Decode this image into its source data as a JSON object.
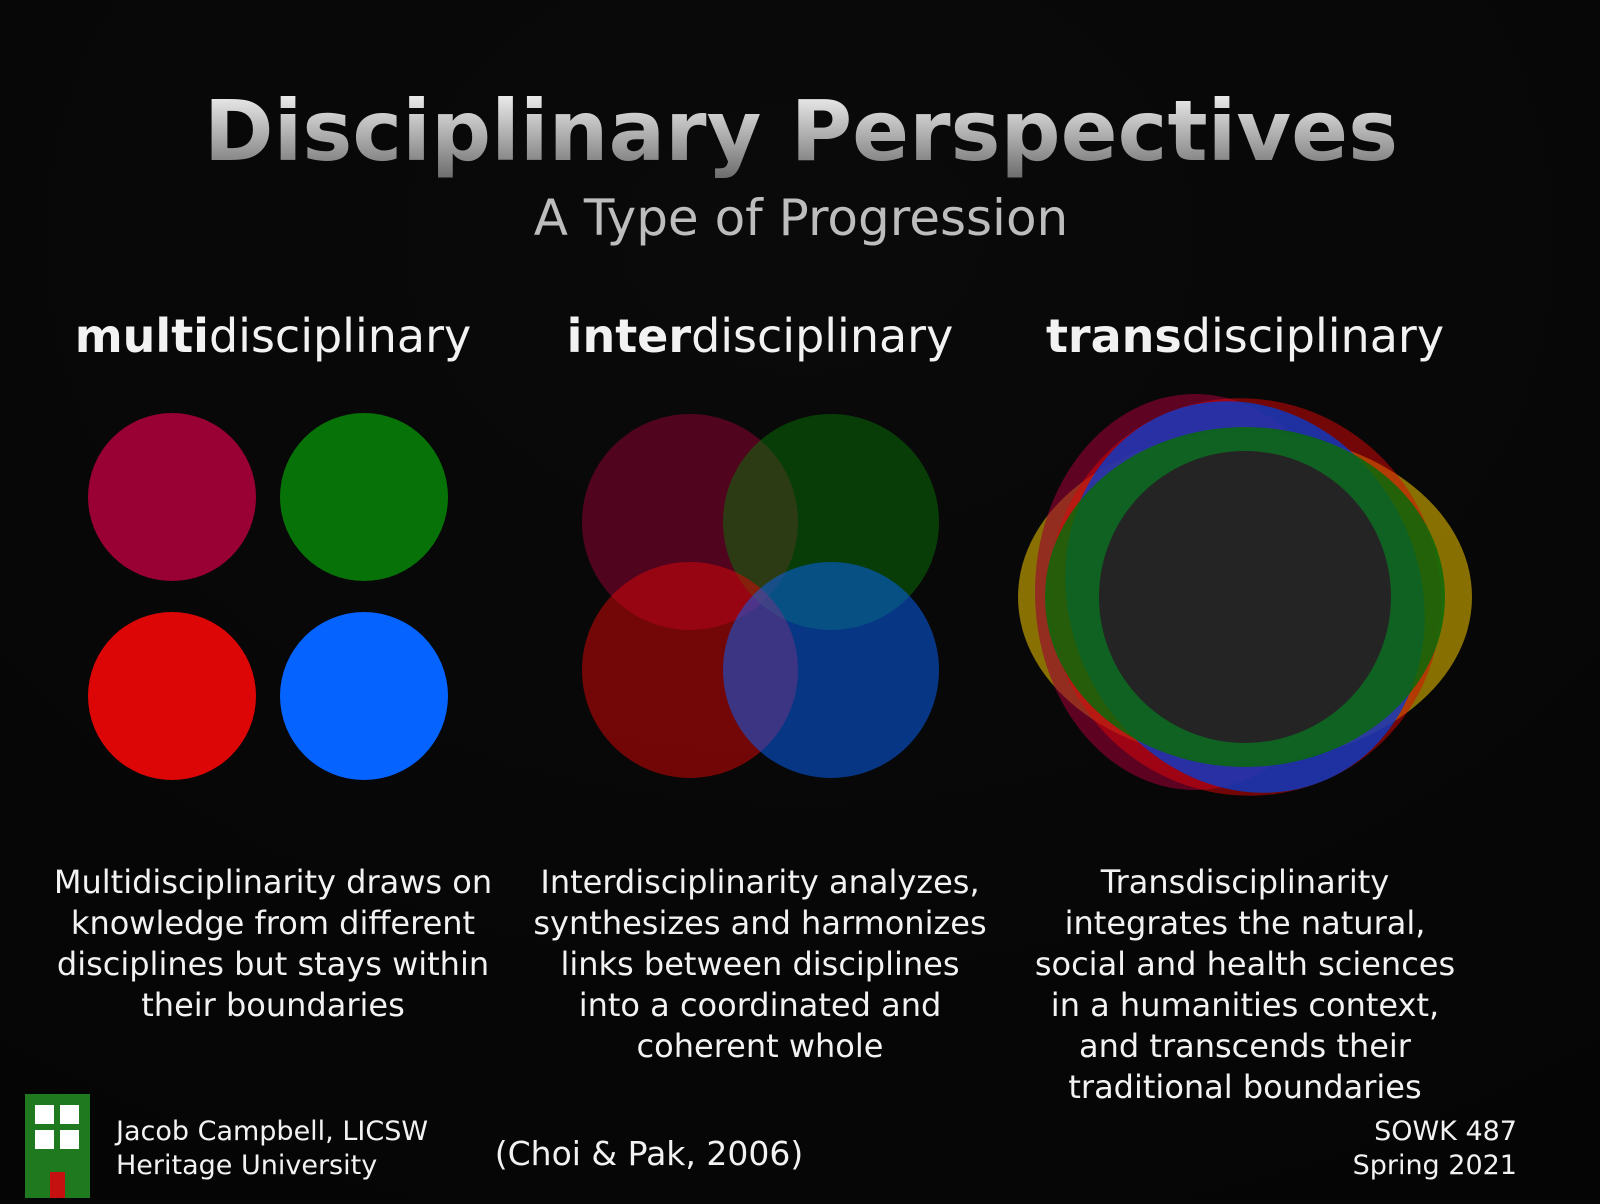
{
  "title": "Disciplinary Perspectives",
  "subtitle": "A Type of Progression",
  "columns": [
    {
      "heading_bold": "multi",
      "heading_rest": "disciplinary",
      "description": [
        "Multidisciplinarity draws on",
        "knowledge from different",
        "disciplines but stays within",
        "their boundaries"
      ]
    },
    {
      "heading_bold": "inter",
      "heading_rest": "disciplinary",
      "description": [
        "Interdisciplinarity analyzes,",
        "synthesizes and harmonizes",
        "links between disciplines",
        "into a coordinated and",
        "coherent whole"
      ]
    },
    {
      "heading_bold": "trans",
      "heading_rest": "disciplinary",
      "description": [
        "Transdisciplinarity",
        "integrates the natural,",
        "social and health sciences",
        "in a humanities context,",
        "and transcends their",
        "traditional boundaries"
      ]
    }
  ],
  "citation": "(Choi & Pak, 2006)",
  "footer": {
    "author": [
      "Jacob Campbell, LICSW",
      "Heritage University"
    ],
    "course": [
      "SOWK 487",
      "Spring 2021"
    ]
  }
}
